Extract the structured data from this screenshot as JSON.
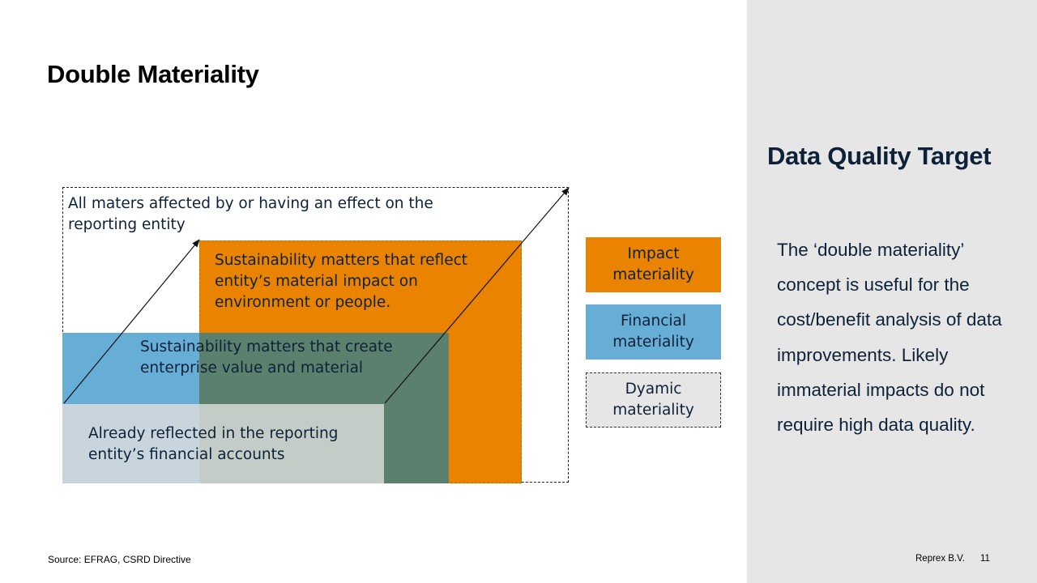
{
  "slide": {
    "title": "Double Materiality",
    "source": "Source: EFRAG,  CSRD Directive",
    "company": "Reprex B.V.",
    "page_number": "11"
  },
  "diagram": {
    "outer_label": "All maters affected by or having an effect on the reporting entity",
    "impact_label": "Sustainability matters that reflect entity’s material impact on environment or people.",
    "financial_label": "Sustainability matters that create enterprise value and material",
    "reflected_label": "Already reflected in the reporting entity’s financial accounts",
    "colors": {
      "impact": "#E98300",
      "financial": "#67AED6",
      "overlap": "#5C806E",
      "reflected": "#C4CCC8"
    }
  },
  "legend": {
    "items": [
      {
        "label": "Impact materiality"
      },
      {
        "label": "Financial materiality"
      },
      {
        "label": "Dyamic materiality"
      }
    ]
  },
  "sidebar": {
    "heading": "Data Quality Target",
    "body": "The ‘double materiality’ concept is useful for the cost/benefit analysis of data improvements. Likely immaterial impacts do not require high data quality."
  }
}
